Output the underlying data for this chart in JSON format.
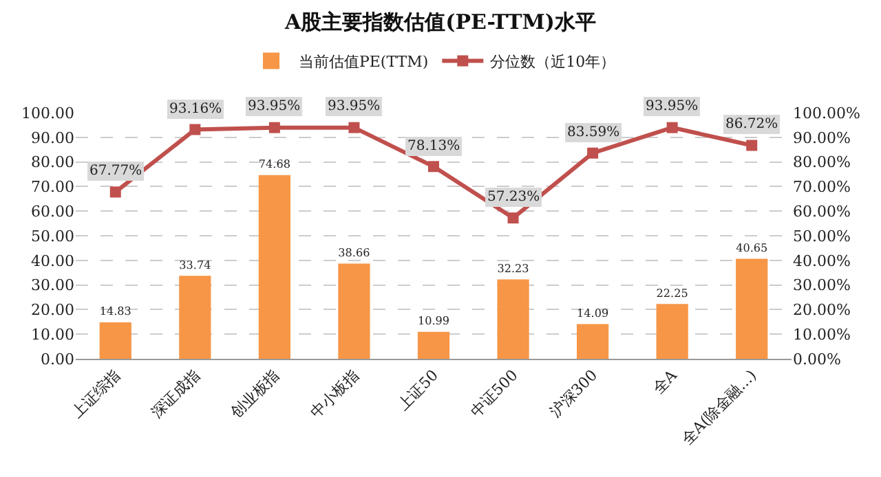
{
  "chart_data": {
    "type": "bar",
    "title": "A股主要指数估值(PE-TTM)水平",
    "categories": [
      "上证综指",
      "深证成指",
      "创业板指",
      "中小板指",
      "上证50",
      "中证500",
      "沪深300",
      "全A",
      "全A(除金融...)"
    ],
    "series": [
      {
        "name": "当前估值PE(TTM)",
        "color": "#f79646",
        "values": [
          14.83,
          33.74,
          74.68,
          38.66,
          10.99,
          32.23,
          14.09,
          22.25,
          40.65
        ],
        "value_labels": [
          "14.83",
          "33.74",
          "74.68",
          "38.66",
          "10.99",
          "32.23",
          "14.09",
          "22.25",
          "40.65"
        ]
      },
      {
        "name": "分位数（近10年）",
        "type": "line",
        "axis": "y2",
        "color": "#c0504d",
        "values": [
          67.77,
          93.16,
          93.95,
          93.95,
          78.13,
          57.23,
          83.59,
          93.95,
          86.72
        ],
        "value_labels": [
          "67.77%",
          "93.16%",
          "93.95%",
          "93.95%",
          "78.13%",
          "57.23%",
          "83.59%",
          "93.95%",
          "86.72%"
        ]
      }
    ],
    "ylim": [
      0,
      100
    ],
    "yticks": [
      {
        "value": 0,
        "label": "0.00"
      },
      {
        "value": 10,
        "label": "10.00"
      },
      {
        "value": 20,
        "label": "20.00"
      },
      {
        "value": 30,
        "label": "30.00"
      },
      {
        "value": 40,
        "label": "40.00"
      },
      {
        "value": 50,
        "label": "50.00"
      },
      {
        "value": 60,
        "label": "60.00"
      },
      {
        "value": 70,
        "label": "70.00"
      },
      {
        "value": 80,
        "label": "80.00"
      },
      {
        "value": 90,
        "label": "90.00"
      },
      {
        "value": 100,
        "label": "100.00"
      }
    ],
    "y2lim": [
      0,
      100
    ],
    "y2ticks": [
      {
        "value": 0,
        "label": "0.00%"
      },
      {
        "value": 10,
        "label": "10.00%"
      },
      {
        "value": 20,
        "label": "20.00%"
      },
      {
        "value": 30,
        "label": "30.00%"
      },
      {
        "value": 40,
        "label": "40.00%"
      },
      {
        "value": 50,
        "label": "50.00%"
      },
      {
        "value": 60,
        "label": "60.00%"
      },
      {
        "value": 70,
        "label": "70.00%"
      },
      {
        "value": 80,
        "label": "80.00%"
      },
      {
        "value": 90,
        "label": "90.00%"
      },
      {
        "value": 100,
        "label": "100.00%"
      }
    ],
    "grid": "y",
    "legend": "top",
    "marker": "square",
    "line_style": "solid"
  }
}
